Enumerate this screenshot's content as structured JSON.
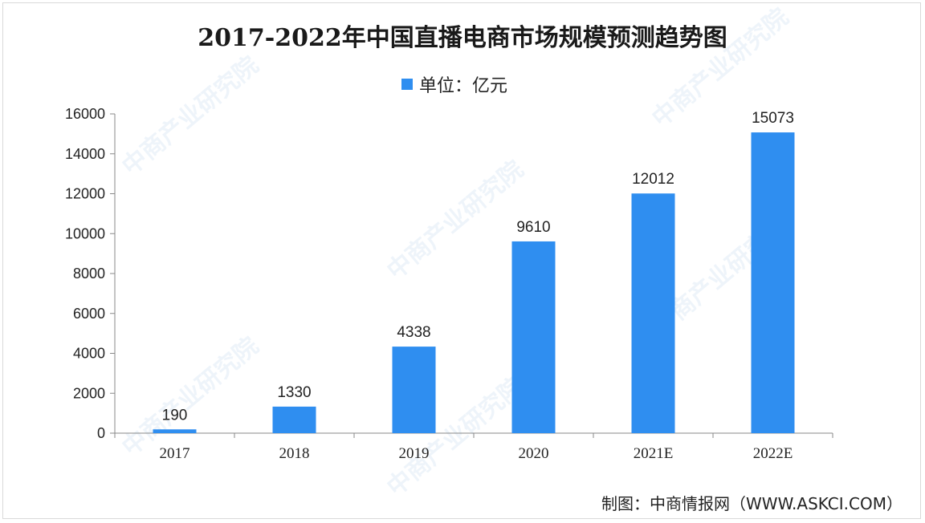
{
  "title": "2017-2022年中国直播电商市场规模预测趋势图",
  "legend": {
    "label": "单位：亿元",
    "color": "#2f8ef0"
  },
  "footer": "制图：中商情报网（WWW.ASKCI.COM）",
  "watermark": "中商产业研究院",
  "chart_data": {
    "type": "bar",
    "title": "2017-2022年中国直播电商市场规模预测趋势图",
    "categories": [
      "2017",
      "2018",
      "2019",
      "2020",
      "2021E",
      "2022E"
    ],
    "series": [
      {
        "name": "单位：亿元",
        "values": [
          190,
          1330,
          4338,
          9610,
          12012,
          15073
        ],
        "color": "#2f8ef0"
      }
    ],
    "ylim": [
      0,
      16000
    ],
    "yticks": [
      0,
      2000,
      4000,
      6000,
      8000,
      10000,
      12000,
      14000,
      16000
    ],
    "data_labels": true,
    "grid": false,
    "legend_position": "top-center"
  }
}
